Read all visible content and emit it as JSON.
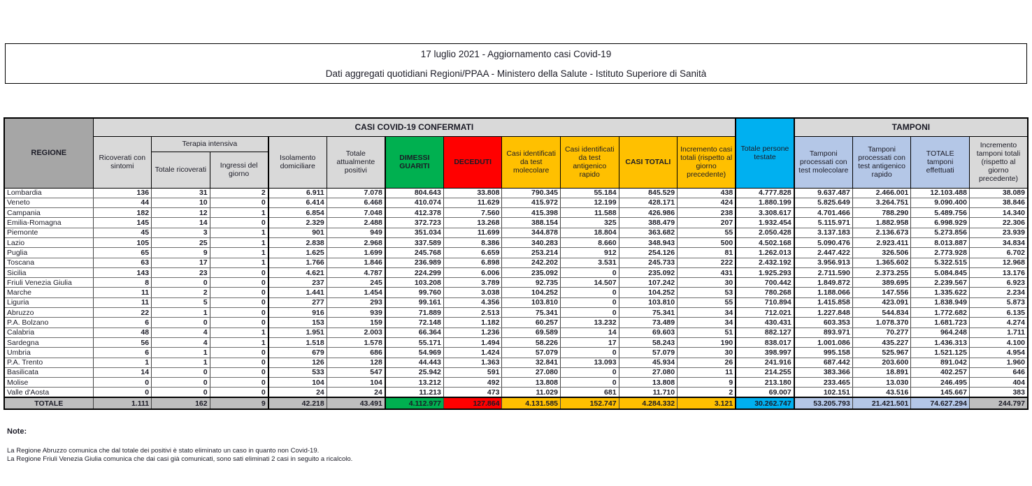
{
  "header": {
    "line1": "17 luglio 2021 - Aggiornamento casi Covid-19",
    "line2": "Dati aggregati quotidiani Regioni/PPAA - Ministero della Salute - Istituto Superiore di Sanità"
  },
  "table": {
    "region_header": "REGIONE",
    "group_confirmed": "CASI COVID-19 CONFERMATI",
    "group_tamponi": "TAMPONI",
    "group_terapia": "Terapia intensiva",
    "columns": [
      "Ricoverati con sintomi",
      "Totale ricoverati",
      "Ingressi del giorno",
      "Isolamento domiciliare",
      "Totale attualmente positivi",
      "DIMESSI GUARITI",
      "DECEDUTI",
      "Casi identificati da test molecolare",
      "Casi identificati da test antigenico rapido",
      "CASI TOTALI",
      "Incremento casi totali (rispetto al giorno precedente)",
      "Totale persone testate",
      "Tamponi processati con test molecolare",
      "Tamponi processati con test antigenico rapido",
      "TOTALE tamponi effettuati",
      "Incremento tamponi totali (rispetto al giorno precedente)"
    ],
    "rows": [
      {
        "name": "Lombardia",
        "values": [
          "136",
          "31",
          "2",
          "6.911",
          "7.078",
          "804.643",
          "33.808",
          "790.345",
          "55.184",
          "845.529",
          "438",
          "4.777.828",
          "9.637.487",
          "2.466.001",
          "12.103.488",
          "38.089"
        ]
      },
      {
        "name": "Veneto",
        "values": [
          "44",
          "10",
          "0",
          "6.414",
          "6.468",
          "410.074",
          "11.629",
          "415.972",
          "12.199",
          "428.171",
          "424",
          "1.880.199",
          "5.825.649",
          "3.264.751",
          "9.090.400",
          "38.846"
        ]
      },
      {
        "name": "Campania",
        "values": [
          "182",
          "12",
          "1",
          "6.854",
          "7.048",
          "412.378",
          "7.560",
          "415.398",
          "11.588",
          "426.986",
          "238",
          "3.308.617",
          "4.701.466",
          "788.290",
          "5.489.756",
          "14.340"
        ]
      },
      {
        "name": "Emilia-Romagna",
        "values": [
          "145",
          "14",
          "0",
          "2.329",
          "2.488",
          "372.723",
          "13.268",
          "388.154",
          "325",
          "388.479",
          "207",
          "1.932.454",
          "5.115.971",
          "1.882.958",
          "6.998.929",
          "22.306"
        ]
      },
      {
        "name": "Piemonte",
        "values": [
          "45",
          "3",
          "1",
          "901",
          "949",
          "351.034",
          "11.699",
          "344.878",
          "18.804",
          "363.682",
          "55",
          "2.050.428",
          "3.137.183",
          "2.136.673",
          "5.273.856",
          "23.939"
        ]
      },
      {
        "name": "Lazio",
        "values": [
          "105",
          "25",
          "1",
          "2.838",
          "2.968",
          "337.589",
          "8.386",
          "340.283",
          "8.660",
          "348.943",
          "500",
          "4.502.168",
          "5.090.476",
          "2.923.411",
          "8.013.887",
          "34.834"
        ]
      },
      {
        "name": "Puglia",
        "values": [
          "65",
          "9",
          "1",
          "1.625",
          "1.699",
          "245.768",
          "6.659",
          "253.214",
          "912",
          "254.126",
          "81",
          "1.262.013",
          "2.447.422",
          "326.506",
          "2.773.928",
          "6.702"
        ]
      },
      {
        "name": "Toscana",
        "values": [
          "63",
          "17",
          "1",
          "1.766",
          "1.846",
          "236.989",
          "6.898",
          "242.202",
          "3.531",
          "245.733",
          "222",
          "2.432.192",
          "3.956.913",
          "1.365.602",
          "5.322.515",
          "12.968"
        ]
      },
      {
        "name": "Sicilia",
        "values": [
          "143",
          "23",
          "0",
          "4.621",
          "4.787",
          "224.299",
          "6.006",
          "235.092",
          "0",
          "235.092",
          "431",
          "1.925.293",
          "2.711.590",
          "2.373.255",
          "5.084.845",
          "13.176"
        ]
      },
      {
        "name": "Friuli Venezia Giulia",
        "values": [
          "8",
          "0",
          "0",
          "237",
          "245",
          "103.208",
          "3.789",
          "92.735",
          "14.507",
          "107.242",
          "30",
          "700.442",
          "1.849.872",
          "389.695",
          "2.239.567",
          "6.923"
        ]
      },
      {
        "name": "Marche",
        "values": [
          "11",
          "2",
          "0",
          "1.441",
          "1.454",
          "99.760",
          "3.038",
          "104.252",
          "0",
          "104.252",
          "53",
          "780.268",
          "1.188.066",
          "147.556",
          "1.335.622",
          "2.234"
        ]
      },
      {
        "name": "Liguria",
        "values": [
          "11",
          "5",
          "0",
          "277",
          "293",
          "99.161",
          "4.356",
          "103.810",
          "0",
          "103.810",
          "55",
          "710.894",
          "1.415.858",
          "423.091",
          "1.838.949",
          "5.873"
        ]
      },
      {
        "name": "Abruzzo",
        "values": [
          "22",
          "1",
          "0",
          "916",
          "939",
          "71.889",
          "2.513",
          "75.341",
          "0",
          "75.341",
          "34",
          "712.021",
          "1.227.848",
          "544.834",
          "1.772.682",
          "6.135"
        ]
      },
      {
        "name": "P.A. Bolzano",
        "values": [
          "6",
          "0",
          "0",
          "153",
          "159",
          "72.148",
          "1.182",
          "60.257",
          "13.232",
          "73.489",
          "34",
          "430.431",
          "603.353",
          "1.078.370",
          "1.681.723",
          "4.274"
        ]
      },
      {
        "name": "Calabria",
        "values": [
          "48",
          "4",
          "1",
          "1.951",
          "2.003",
          "66.364",
          "1.236",
          "69.589",
          "14",
          "69.603",
          "51",
          "882.127",
          "893.971",
          "70.277",
          "964.248",
          "1.711"
        ]
      },
      {
        "name": "Sardegna",
        "values": [
          "56",
          "4",
          "1",
          "1.518",
          "1.578",
          "55.171",
          "1.494",
          "58.226",
          "17",
          "58.243",
          "190",
          "838.017",
          "1.001.086",
          "435.227",
          "1.436.313",
          "4.100"
        ]
      },
      {
        "name": "Umbria",
        "values": [
          "6",
          "1",
          "0",
          "679",
          "686",
          "54.969",
          "1.424",
          "57.079",
          "0",
          "57.079",
          "30",
          "398.997",
          "995.158",
          "525.967",
          "1.521.125",
          "4.954"
        ]
      },
      {
        "name": "P.A. Trento",
        "values": [
          "1",
          "1",
          "0",
          "126",
          "128",
          "44.443",
          "1.363",
          "32.841",
          "13.093",
          "45.934",
          "26",
          "241.916",
          "687.442",
          "203.600",
          "891.042",
          "1.960"
        ]
      },
      {
        "name": "Basilicata",
        "values": [
          "14",
          "0",
          "0",
          "533",
          "547",
          "25.942",
          "591",
          "27.080",
          "0",
          "27.080",
          "11",
          "214.255",
          "383.366",
          "18.891",
          "402.257",
          "646"
        ]
      },
      {
        "name": "Molise",
        "values": [
          "0",
          "0",
          "0",
          "104",
          "104",
          "13.212",
          "492",
          "13.808",
          "0",
          "13.808",
          "9",
          "213.180",
          "233.465",
          "13.030",
          "246.495",
          "404"
        ]
      },
      {
        "name": "Valle d'Aosta",
        "values": [
          "0",
          "0",
          "0",
          "24",
          "24",
          "11.213",
          "473",
          "11.029",
          "681",
          "11.710",
          "2",
          "69.007",
          "102.151",
          "43.516",
          "145.667",
          "383"
        ]
      }
    ],
    "total": {
      "name": "TOTALE",
      "values": [
        "1.111",
        "162",
        "9",
        "42.218",
        "43.491",
        "4.112.977",
        "127.864",
        "4.131.585",
        "152.747",
        "4.284.332",
        "3.121",
        "30.262.747",
        "53.205.793",
        "21.421.501",
        "74.627.294",
        "244.797"
      ]
    }
  },
  "notes": {
    "heading": "Note:",
    "lines": [
      "La Regione Abruzzo comunica che dal totale dei positivi è stato eliminato un caso in quanto non Covid-19.",
      "La Regione Friuli Venezia Giulia comunica che dai casi già comunicati, sono sati eliminati 2 casi in seguito a ricalcolo."
    ]
  },
  "colors": {
    "green": "#00B050",
    "red": "#FF0000",
    "amber": "#FFC000",
    "cyan": "#00B0F0",
    "lavender": "#B4C7E7",
    "header_gray": "#D9D9D9",
    "region_header_gray": "#A6A6A6",
    "total_row_gray": "#BFBFBF"
  }
}
